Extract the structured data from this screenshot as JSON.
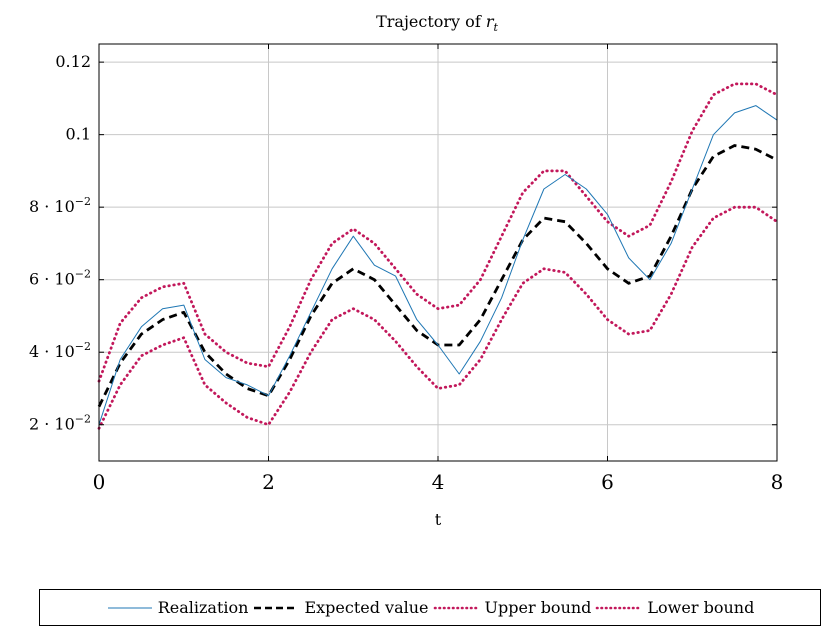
{
  "chart_data": {
    "type": "line",
    "title_prefix": "Trajectory of ",
    "title_var": "r",
    "title_sub": "t",
    "xlabel": "t",
    "ylabel": "",
    "xlim": [
      0,
      8
    ],
    "ylim": [
      0.01,
      0.125
    ],
    "grid": true,
    "legend_position": "bottom",
    "xticks": [
      0,
      2,
      4,
      6,
      8
    ],
    "xtick_labels": [
      "0",
      "2",
      "4",
      "6",
      "8"
    ],
    "yticks": [
      0.02,
      0.04,
      0.06,
      0.08,
      0.1,
      0.12
    ],
    "ytick_labels": [
      {
        "mant": "2",
        "exp": "−2"
      },
      {
        "mant": "4",
        "exp": "−2"
      },
      {
        "mant": "6",
        "exp": "−2"
      },
      {
        "mant": "8",
        "exp": "−2"
      },
      {
        "plain": "0.1"
      },
      {
        "plain": "0.12"
      }
    ],
    "x": [
      0,
      0.25,
      0.5,
      0.75,
      1.0,
      1.25,
      1.5,
      1.75,
      2.0,
      2.25,
      2.5,
      2.75,
      3.0,
      3.25,
      3.5,
      3.75,
      4.0,
      4.25,
      4.5,
      4.75,
      5.0,
      5.25,
      5.5,
      5.75,
      6.0,
      6.25,
      6.5,
      6.75,
      7.0,
      7.25,
      7.5,
      7.75,
      8.0
    ],
    "series": [
      {
        "name": "Realization",
        "color": "#1f77b4",
        "style": "solid",
        "values": [
          0.02,
          0.038,
          0.047,
          0.052,
          0.053,
          0.038,
          0.033,
          0.031,
          0.028,
          0.039,
          0.051,
          0.063,
          0.072,
          0.064,
          0.061,
          0.049,
          0.042,
          0.034,
          0.043,
          0.055,
          0.071,
          0.085,
          0.089,
          0.085,
          0.078,
          0.066,
          0.06,
          0.07,
          0.085,
          0.1,
          0.106,
          0.108,
          0.104
        ]
      },
      {
        "name": "Expected value",
        "color": "#000000",
        "style": "dashed",
        "values": [
          0.025,
          0.037,
          0.045,
          0.049,
          0.051,
          0.04,
          0.034,
          0.03,
          0.028,
          0.038,
          0.05,
          0.059,
          0.063,
          0.06,
          0.053,
          0.046,
          0.042,
          0.042,
          0.049,
          0.06,
          0.071,
          0.077,
          0.076,
          0.07,
          0.063,
          0.059,
          0.061,
          0.072,
          0.085,
          0.094,
          0.097,
          0.096,
          0.093
        ]
      },
      {
        "name": "Upper bound",
        "color": "#c2185b",
        "style": "dotted",
        "values": [
          0.032,
          0.048,
          0.055,
          0.058,
          0.059,
          0.045,
          0.04,
          0.037,
          0.036,
          0.047,
          0.06,
          0.07,
          0.074,
          0.07,
          0.063,
          0.056,
          0.052,
          0.053,
          0.06,
          0.072,
          0.084,
          0.09,
          0.09,
          0.083,
          0.076,
          0.072,
          0.075,
          0.087,
          0.101,
          0.111,
          0.114,
          0.114,
          0.111
        ]
      },
      {
        "name": "Lower bound",
        "color": "#c2185b",
        "style": "dotted",
        "values": [
          0.019,
          0.031,
          0.039,
          0.042,
          0.044,
          0.031,
          0.026,
          0.022,
          0.02,
          0.029,
          0.04,
          0.049,
          0.052,
          0.049,
          0.043,
          0.036,
          0.03,
          0.031,
          0.038,
          0.049,
          0.059,
          0.063,
          0.062,
          0.056,
          0.049,
          0.045,
          0.046,
          0.056,
          0.069,
          0.077,
          0.08,
          0.08,
          0.076
        ]
      }
    ]
  }
}
